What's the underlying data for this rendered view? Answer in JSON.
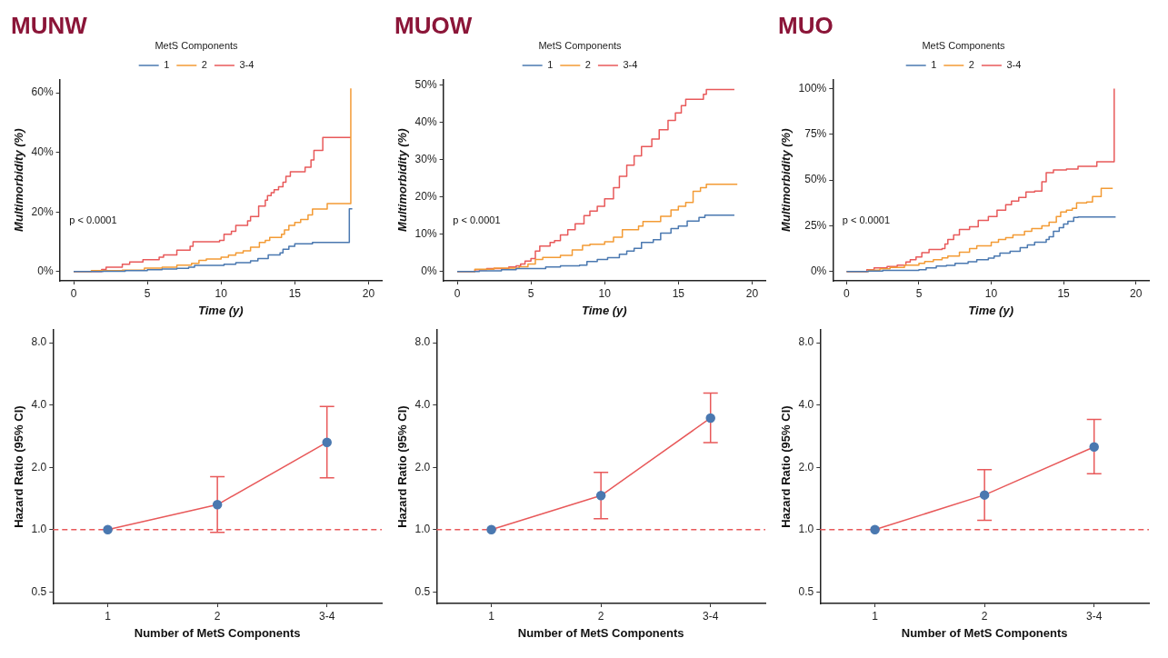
{
  "chart_data": [
    {
      "type": "step",
      "title": "MUNW",
      "legend": "top",
      "legend_title": "MetS Components",
      "xlabel": "Time (y)",
      "ylabel": "Multimorbidity (%)",
      "xlim": [
        -0.95,
        20.9
      ],
      "xticks": [
        0,
        5,
        10,
        15,
        20
      ],
      "ylim": [
        -3.1,
        64.5
      ],
      "yticks": [
        {
          "value": 0,
          "label": "0%"
        },
        {
          "value": 20,
          "label": "20%"
        },
        {
          "value": 40,
          "label": "40%"
        },
        {
          "value": 60,
          "label": "60%"
        }
      ],
      "annotations": [
        "p < 0.0001"
      ],
      "series": [
        {
          "name": "1",
          "color": "#4a78b0",
          "x": [
            0,
            2.0,
            3.5,
            5.0,
            6.0,
            7.0,
            7.8,
            8.2,
            10.2,
            11.0,
            12.0,
            12.5,
            13.2,
            14.0,
            14.2,
            14.6,
            15.0,
            16.2,
            18.7,
            18.7,
            18.9
          ],
          "values": [
            0,
            0.1,
            0.3,
            0.6,
            0.9,
            1.1,
            1.5,
            2.1,
            2.5,
            3.0,
            3.6,
            4.4,
            5.6,
            6.3,
            7.5,
            8.5,
            9.3,
            9.8,
            9.8,
            21.1,
            21.1
          ]
        },
        {
          "name": "2",
          "color": "#f39b35",
          "x": [
            0,
            1.2,
            3.3,
            4.8,
            6.0,
            7.0,
            8.0,
            8.5,
            9.0,
            10.0,
            10.5,
            11.0,
            11.5,
            12.0,
            12.6,
            13.0,
            13.3,
            14.1,
            14.3,
            14.6,
            15.0,
            15.4,
            15.9,
            16.2,
            17.2,
            18.8,
            18.8
          ],
          "values": [
            0,
            0.3,
            0.5,
            1.2,
            1.5,
            2.2,
            2.8,
            3.8,
            4.2,
            4.8,
            5.5,
            6.3,
            7,
            8.2,
            9.8,
            10.5,
            11.5,
            12.5,
            14,
            15.5,
            16.5,
            17.5,
            19,
            21,
            22.8,
            22.8,
            61.5
          ]
        },
        {
          "name": "3-4",
          "color": "#e8595a",
          "x": [
            0,
            1.9,
            2.2,
            3.3,
            3.8,
            4.7,
            5.8,
            6.1,
            7.0,
            7.9,
            8.1,
            9.9,
            10.2,
            10.7,
            11.0,
            11.8,
            12.0,
            12.55,
            13.0,
            13.15,
            13.4,
            13.6,
            13.9,
            14.2,
            14.4,
            14.7,
            15.7,
            16.1,
            16.3,
            16.9,
            18.8
          ],
          "values": [
            0,
            0.7,
            1.5,
            2.5,
            3.2,
            4,
            4.8,
            5.6,
            7.2,
            8.5,
            10,
            10.5,
            12.5,
            13.5,
            15.5,
            17,
            18.5,
            22,
            24,
            25.5,
            26.5,
            27.5,
            28.5,
            30,
            32,
            33.5,
            35,
            37.5,
            40.7,
            45,
            45
          ]
        }
      ]
    },
    {
      "type": "step",
      "title": "MUOW",
      "legend": "top",
      "legend_title": "MetS Components",
      "xlabel": "Time (y)",
      "ylabel": "Multimorbidity (%)",
      "xlim": [
        -0.95,
        20.9
      ],
      "xticks": [
        0,
        5,
        10,
        15,
        20
      ],
      "ylim": [
        -2.5,
        51.5
      ],
      "yticks": [
        {
          "value": 0,
          "label": "0%"
        },
        {
          "value": 10,
          "label": "10%"
        },
        {
          "value": 20,
          "label": "20%"
        },
        {
          "value": 30,
          "label": "30%"
        },
        {
          "value": 40,
          "label": "40%"
        },
        {
          "value": 50,
          "label": "50%"
        }
      ],
      "annotations": [
        "p < 0.0001"
      ],
      "series": [
        {
          "name": "1",
          "color": "#4a78b0",
          "x": [
            0,
            1.5,
            3.0,
            4.0,
            6.0,
            7.0,
            8.3,
            8.8,
            9.5,
            10.2,
            11.0,
            11.5,
            12.0,
            12.5,
            13.3,
            13.8,
            14.5,
            15.0,
            15.6,
            16.4,
            16.8,
            18.8
          ],
          "values": [
            0,
            0.2,
            0.5,
            0.8,
            1.2,
            1.5,
            1.7,
            2.7,
            3.2,
            3.7,
            4.6,
            5.5,
            6.2,
            7.8,
            8.5,
            10.3,
            11.5,
            12.2,
            13.5,
            14.5,
            15.1,
            15.1
          ]
        },
        {
          "name": "2",
          "color": "#f39b35",
          "x": [
            0,
            1.2,
            2.5,
            4.2,
            4.8,
            5.3,
            5.8,
            7.0,
            7.8,
            8.5,
            9.0,
            10.0,
            10.6,
            11.2,
            12.3,
            12.6,
            13.8,
            14.5,
            15.0,
            15.5,
            16.0,
            16.5,
            16.9,
            19.0
          ],
          "values": [
            0,
            0.6,
            0.9,
            1.3,
            2,
            3.2,
            3.8,
            4.3,
            5.8,
            7,
            7.3,
            8,
            9.2,
            11.2,
            12.2,
            13.4,
            14.8,
            16.5,
            17.5,
            18.5,
            21.5,
            22.5,
            23.4,
            23.4
          ]
        },
        {
          "name": "3-4",
          "color": "#e8595a",
          "x": [
            0,
            1.2,
            2.0,
            3.5,
            4.0,
            4.3,
            4.6,
            5.0,
            5.3,
            5.6,
            6.3,
            6.6,
            7.0,
            7.5,
            8.0,
            8.6,
            9.0,
            9.5,
            10.0,
            10.6,
            11.0,
            11.5,
            12.0,
            12.5,
            13.2,
            13.7,
            14.3,
            14.8,
            15.2,
            15.5,
            16.7,
            16.9,
            18.8
          ],
          "values": [
            0,
            0.5,
            0.8,
            1.2,
            1.5,
            2,
            2.8,
            3.5,
            5.5,
            6.8,
            7.8,
            8.3,
            9.8,
            11.2,
            12.8,
            15,
            16.2,
            17.5,
            19.5,
            22.5,
            25.5,
            28.5,
            31,
            33.5,
            35.5,
            38,
            40.5,
            42.5,
            44.5,
            46.2,
            47.5,
            48.8,
            48.8
          ]
        }
      ]
    },
    {
      "type": "step",
      "title": "MUO",
      "legend": "top",
      "legend_title": "MetS Components",
      "xlabel": "Time (y)",
      "ylabel": "Multimorbidity (%)",
      "xlim": [
        -0.95,
        20.9
      ],
      "xticks": [
        0,
        5,
        10,
        15,
        20
      ],
      "ylim": [
        -5.1,
        105
      ],
      "yticks": [
        {
          "value": 0,
          "label": "0%"
        },
        {
          "value": 25,
          "label": "25%"
        },
        {
          "value": 50,
          "label": "50%"
        },
        {
          "value": 75,
          "label": "75%"
        },
        {
          "value": 100,
          "label": "100%"
        }
      ],
      "annotations": [
        "p < 0.0001"
      ],
      "series": [
        {
          "name": "1",
          "color": "#4a78b0",
          "x": [
            0,
            1.5,
            2.5,
            5.0,
            5.5,
            6.2,
            6.9,
            7.5,
            8.4,
            9.0,
            9.8,
            10.2,
            10.6,
            11.3,
            12.0,
            12.5,
            13.0,
            13.8,
            14.0,
            14.3,
            14.7,
            15.0,
            15.3,
            15.7,
            16.0,
            18.6
          ],
          "values": [
            0,
            0.3,
            0.6,
            1,
            2,
            3,
            3.3,
            4.5,
            5.3,
            6.5,
            7.3,
            8.5,
            10,
            11,
            13,
            14.5,
            16,
            17.5,
            19,
            22,
            24,
            26,
            27.5,
            29.5,
            29.8,
            29.8
          ]
        },
        {
          "name": "2",
          "color": "#f39b35",
          "x": [
            0,
            1.5,
            2.3,
            3.0,
            4.0,
            5.0,
            5.4,
            6.0,
            6.6,
            7.0,
            7.8,
            8.5,
            9.0,
            10.0,
            10.5,
            11.0,
            11.5,
            12.3,
            12.8,
            13.5,
            14.0,
            14.5,
            14.8,
            15.2,
            15.6,
            15.9,
            16.6,
            17.0,
            17.6,
            18.4
          ],
          "values": [
            0,
            0.7,
            1.5,
            2.2,
            3.5,
            4.5,
            5.5,
            6.5,
            7.5,
            8.5,
            10.5,
            12.5,
            14,
            16,
            17.5,
            18.5,
            20,
            22,
            23.5,
            25,
            27,
            30,
            32.5,
            33.5,
            34.5,
            37.5,
            38,
            41,
            45.5,
            45.5
          ]
        },
        {
          "name": "3-4",
          "color": "#e8595a",
          "x": [
            0,
            1.4,
            1.9,
            2.8,
            3.5,
            4.1,
            4.4,
            4.8,
            5.2,
            5.7,
            6.6,
            6.8,
            7.0,
            7.4,
            7.8,
            8.5,
            9.1,
            9.8,
            10.4,
            11.0,
            11.4,
            11.9,
            12.4,
            13.0,
            13.5,
            13.8,
            14.3,
            15.2,
            16.0,
            17.3,
            18.5,
            18.5
          ],
          "values": [
            0,
            1,
            2,
            2.7,
            3.5,
            5.2,
            6.5,
            8,
            10.3,
            12,
            12.5,
            15,
            17.5,
            20,
            23,
            24.5,
            28,
            30,
            33.5,
            36.5,
            38.5,
            40.5,
            43.5,
            44,
            49,
            54,
            55.5,
            56,
            57.5,
            60,
            60,
            100
          ]
        }
      ]
    },
    {
      "type": "line",
      "log": "y",
      "xlabel": "Number of MetS Components",
      "ylabel": "Hazard Ratio (95% CI)",
      "categories": [
        "1",
        "2",
        "3-4"
      ],
      "ylim": [
        0.44,
        9.2
      ],
      "yticks": [
        {
          "value": 0.5,
          "label": "0.5"
        },
        {
          "value": 1,
          "label": "1.0"
        },
        {
          "value": 2,
          "label": "2.0"
        },
        {
          "value": 4,
          "label": "4.0"
        },
        {
          "value": 8,
          "label": "8.0"
        }
      ],
      "ref_lines": [
        {
          "axis": "y",
          "value": 1,
          "color": "#e8595a",
          "line_style": "dashed"
        }
      ],
      "series": [
        {
          "type": "line",
          "color": "#e8595a",
          "colors": [
            "#4a78b0",
            "#4a78b0",
            "#4a78b0"
          ],
          "marker": "circle",
          "values": [
            1,
            1.32,
            2.64
          ],
          "errors": [
            null,
            [
              0.97,
              1.8
            ],
            [
              1.78,
              3.93
            ]
          ]
        }
      ]
    },
    {
      "type": "line",
      "log": "y",
      "xlabel": "Number of MetS Components",
      "ylabel": "Hazard Ratio (95% CI)",
      "categories": [
        "1",
        "2",
        "3-4"
      ],
      "ylim": [
        0.44,
        9.2
      ],
      "yticks": [
        {
          "value": 0.5,
          "label": "0.5"
        },
        {
          "value": 1,
          "label": "1.0"
        },
        {
          "value": 2,
          "label": "2.0"
        },
        {
          "value": 4,
          "label": "4.0"
        },
        {
          "value": 8,
          "label": "8.0"
        }
      ],
      "ref_lines": [
        {
          "axis": "y",
          "value": 1,
          "color": "#e8595a",
          "line_style": "dashed"
        }
      ],
      "series": [
        {
          "type": "line",
          "color": "#e8595a",
          "colors": [
            "#4a78b0",
            "#4a78b0",
            "#4a78b0"
          ],
          "marker": "circle",
          "values": [
            1,
            1.46,
            3.46
          ],
          "errors": [
            null,
            [
              1.13,
              1.89
            ],
            [
              2.63,
              4.57
            ]
          ]
        }
      ]
    },
    {
      "type": "line",
      "log": "y",
      "xlabel": "Number of MetS Components",
      "ylabel": "Hazard Ratio (95% CI)",
      "categories": [
        "1",
        "2",
        "3-4"
      ],
      "ylim": [
        0.44,
        9.2
      ],
      "yticks": [
        {
          "value": 0.5,
          "label": "0.5"
        },
        {
          "value": 1,
          "label": "1.0"
        },
        {
          "value": 2,
          "label": "2.0"
        },
        {
          "value": 4,
          "label": "4.0"
        },
        {
          "value": 8,
          "label": "8.0"
        }
      ],
      "ref_lines": [
        {
          "axis": "y",
          "value": 1,
          "color": "#e8595a",
          "line_style": "dashed"
        }
      ],
      "series": [
        {
          "type": "line",
          "color": "#e8595a",
          "colors": [
            "#4a78b0",
            "#4a78b0",
            "#4a78b0"
          ],
          "marker": "circle",
          "values": [
            1,
            1.47,
            2.51
          ],
          "errors": [
            null,
            [
              1.11,
              1.95
            ],
            [
              1.86,
              3.41
            ]
          ]
        }
      ]
    }
  ]
}
